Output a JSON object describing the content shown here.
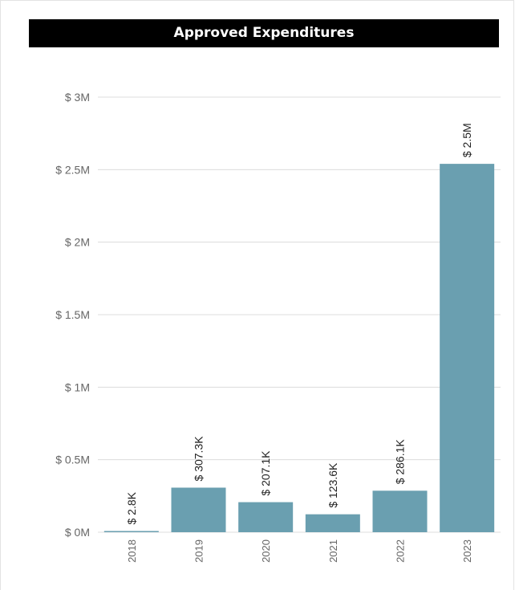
{
  "colors": {
    "bar": "#6a9fb0",
    "grid": "#dcdcdc",
    "title_bg": "#000000",
    "title_text": "#ffffff",
    "axis_text": "#666666",
    "label_text": "#222222"
  },
  "chart_data": {
    "type": "bar",
    "title": "Approved Expenditures",
    "xlabel": "",
    "ylabel": "",
    "categories": [
      "2018",
      "2019",
      "2020",
      "2021",
      "2022",
      "2023"
    ],
    "values": [
      2800,
      307300,
      207100,
      123600,
      286100,
      2540000
    ],
    "data_labels": [
      "$ 2.8K",
      "$ 307.3K",
      "$ 207.1K",
      "$ 123.6K",
      "$ 286.1K",
      "$ 2.5M"
    ],
    "ylim": [
      0,
      3000000
    ],
    "yticks": [
      0,
      500000,
      1000000,
      1500000,
      2000000,
      2500000,
      3000000
    ],
    "ytick_labels": [
      "$ 0M",
      "$ 0.5M",
      "$ 1M",
      "$ 1.5M",
      "$ 2M",
      "$ 2.5M",
      "$ 3M"
    ],
    "grid": true,
    "legend": "none"
  }
}
